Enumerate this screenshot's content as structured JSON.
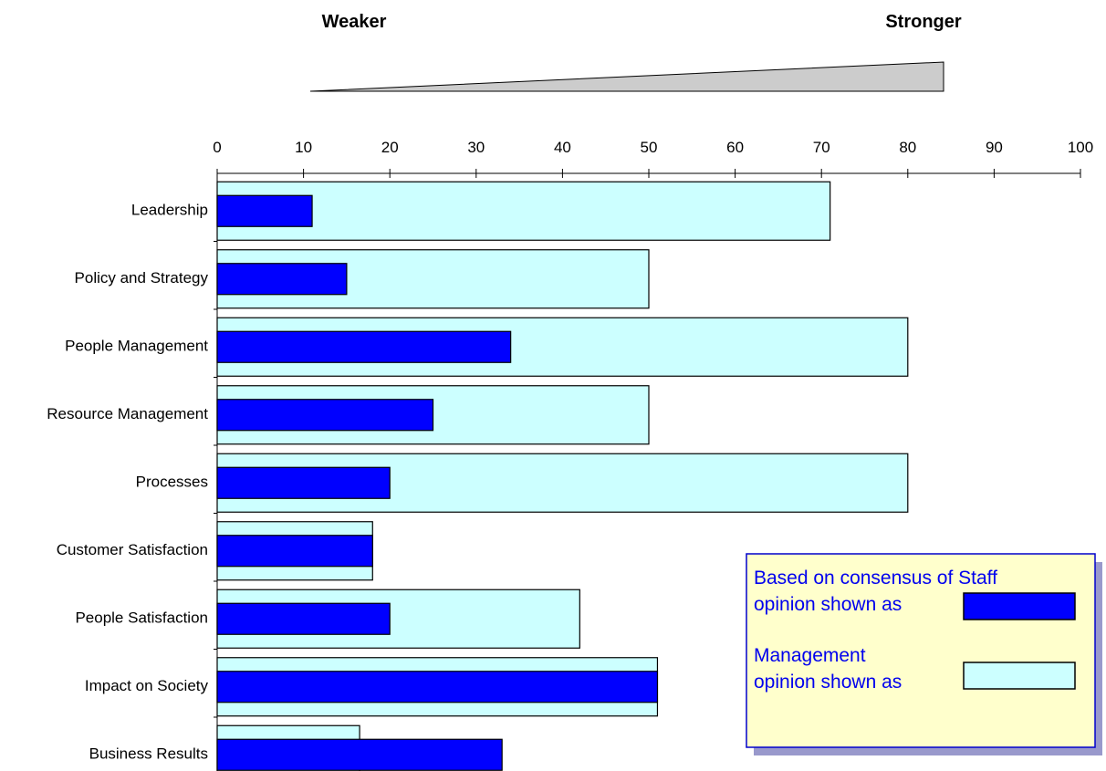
{
  "chart_data": {
    "type": "bar",
    "orientation": "horizontal",
    "scale_labels": {
      "weak": "Weaker",
      "strong": "Stronger"
    },
    "xlim": [
      0,
      100
    ],
    "xticks": [
      0,
      10,
      20,
      30,
      40,
      50,
      60,
      70,
      80,
      90,
      100
    ],
    "categories": [
      "Leadership",
      "Policy and Strategy",
      "People Management",
      "Resource Management",
      "Processes",
      "Customer Satisfaction",
      "People Satisfaction",
      "Impact on Society",
      "Business Results"
    ],
    "series": [
      {
        "key": "management",
        "color": "#ccffff",
        "values": [
          71,
          50,
          80,
          50,
          80,
          18,
          42,
          51,
          16.5
        ]
      },
      {
        "key": "staff",
        "color": "#0000ff",
        "values": [
          11,
          15,
          34,
          25,
          20,
          18,
          20,
          51,
          33
        ]
      }
    ],
    "legend": {
      "position": "bottom-right",
      "staff_line1": "Based on consensus of Staff",
      "staff_line2": "opinion shown as",
      "mgmt_line1": "Management",
      "mgmt_line2": "opinion shown as"
    },
    "grid": false
  }
}
